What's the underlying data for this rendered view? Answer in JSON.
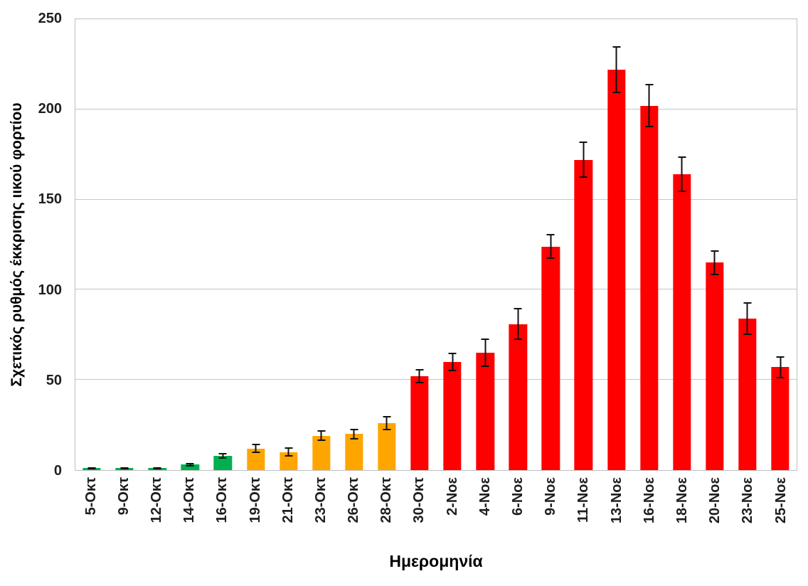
{
  "chart_data": {
    "type": "bar",
    "title": "",
    "xlabel": "Ημερομηνία",
    "ylabel": "Σχετικός ρυθμός έκκρισης ιικού φορτίου",
    "ylim": [
      0,
      250
    ],
    "yticks": [
      0,
      50,
      100,
      150,
      200,
      250
    ],
    "grid": "horizontal",
    "legend": "none",
    "error_bars_shown": true,
    "categories": [
      "5-Οκτ",
      "9-Οκτ",
      "12-Οκτ",
      "14-Οκτ",
      "16-Οκτ",
      "19-Οκτ",
      "21-Οκτ",
      "23-Οκτ",
      "26-Οκτ",
      "28-Οκτ",
      "30-Οκτ",
      "2-Νοε",
      "4-Νοε",
      "6-Νοε",
      "9-Νοε",
      "11-Νοε",
      "13-Νοε",
      "16-Νοε",
      "18-Νοε",
      "20-Νοε",
      "23-Νοε",
      "25-Νοε"
    ],
    "values": [
      1,
      1,
      1,
      3,
      8,
      12,
      10,
      19,
      20,
      26,
      52,
      60,
      65,
      81,
      124,
      172,
      222,
      202,
      164,
      115,
      84,
      57
    ],
    "error_bars": [
      0.5,
      0.5,
      0.5,
      1,
      1.5,
      2.5,
      2.5,
      3,
      3,
      4,
      4,
      5,
      8,
      9,
      7,
      10,
      13,
      12,
      10,
      7,
      9,
      6
    ],
    "bar_colors": [
      "#00b050",
      "#00b050",
      "#00b050",
      "#00b050",
      "#00b050",
      "#ffa500",
      "#ffa500",
      "#ffa500",
      "#ffa500",
      "#ffa500",
      "#fe0000",
      "#fe0000",
      "#fe0000",
      "#fe0000",
      "#fe0000",
      "#fe0000",
      "#fe0000",
      "#fe0000",
      "#fe0000",
      "#fe0000",
      "#fe0000",
      "#fe0000"
    ],
    "color_groups": {
      "green": "#00b050",
      "orange": "#ffa500",
      "red": "#fe0000"
    },
    "gridline_color": "#c6c6c6",
    "error_bar_color": "#111111"
  }
}
